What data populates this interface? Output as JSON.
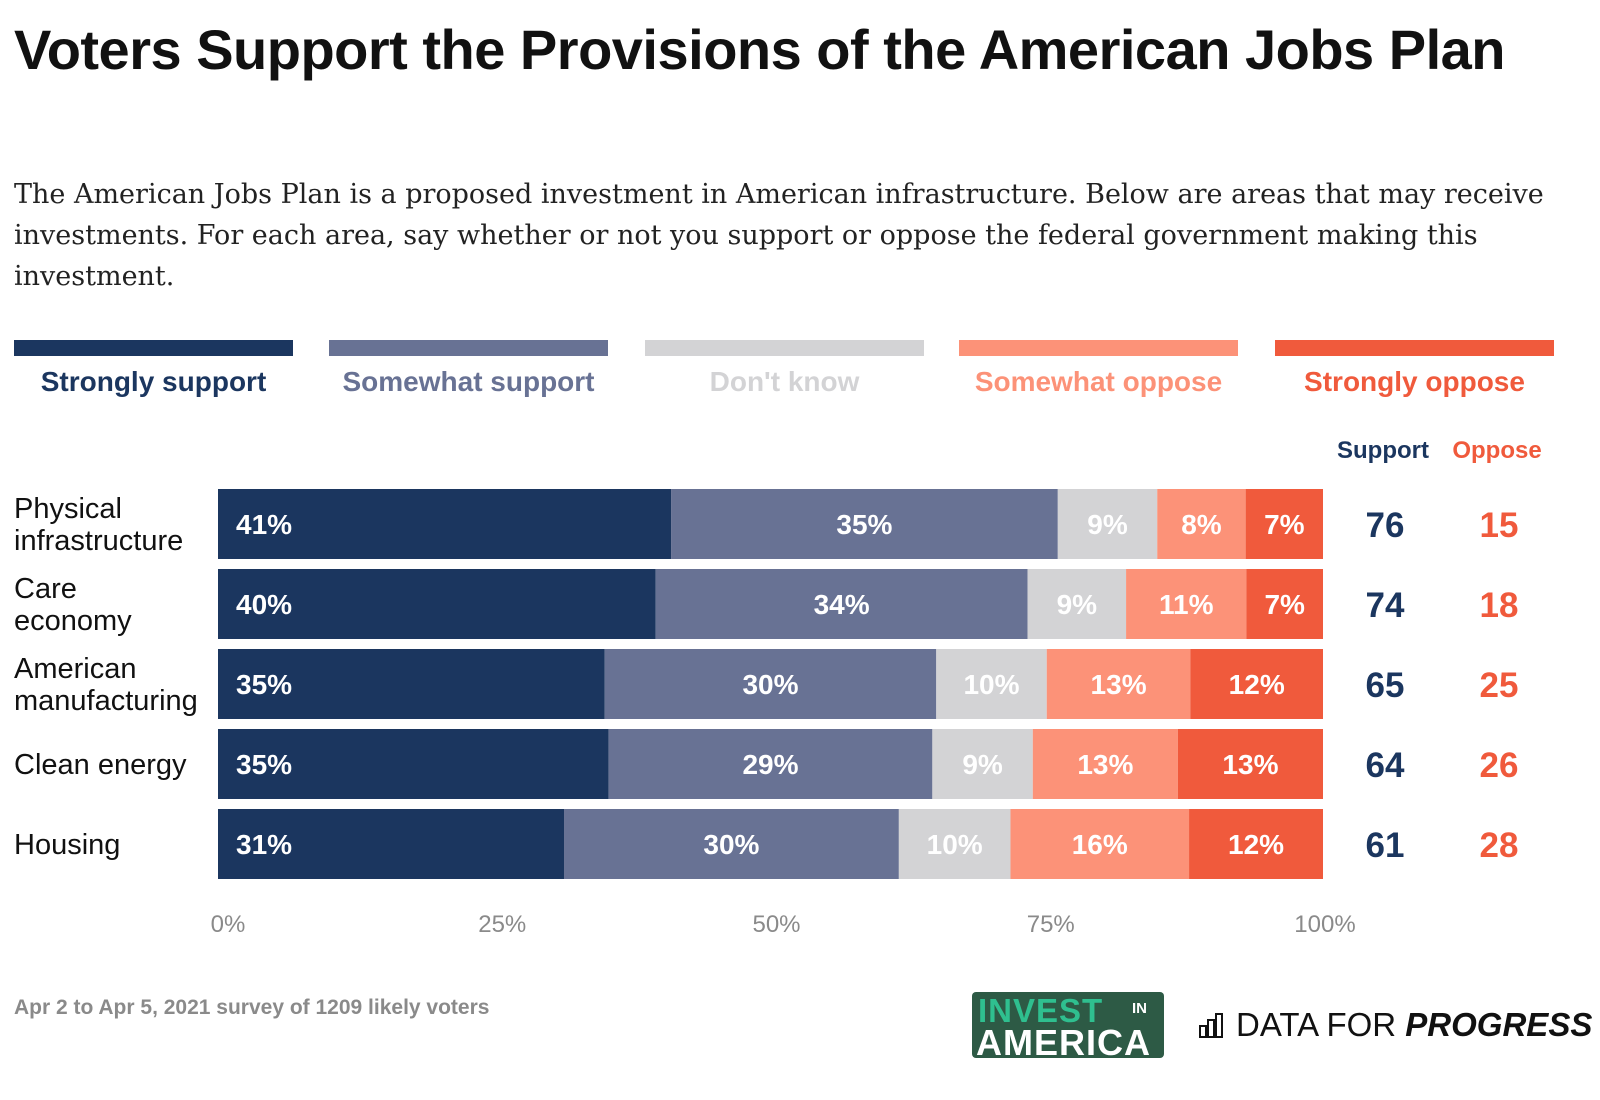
{
  "chart_data": {
    "type": "bar",
    "orientation": "horizontal-stacked-100",
    "title": "Voters Support the Provisions of the American Jobs Plan",
    "subtitle": "The American Jobs Plan is a proposed investment in American infrastructure. Below are areas that may receive investments. For each area, say whether or not you support or oppose the federal government making this investment.",
    "categories": [
      "Physical infrastructure",
      "Care economy",
      "American manufacturing",
      "Clean energy",
      "Housing"
    ],
    "series": [
      {
        "name": "Strongly support",
        "color": "#1b365f",
        "label_color": "#ffffff",
        "values": [
          41,
          40,
          35,
          35,
          31
        ]
      },
      {
        "name": "Somewhat support",
        "color": "#687294",
        "label_color": "#ffffff",
        "values": [
          35,
          34,
          30,
          29,
          30
        ]
      },
      {
        "name": "Don't know",
        "color": "#d3d3d5",
        "label_color": "#ffffff",
        "values": [
          9,
          9,
          10,
          9,
          10
        ]
      },
      {
        "name": "Somewhat oppose",
        "color": "#fc9278",
        "label_color": "#ffffff",
        "values": [
          8,
          11,
          13,
          13,
          16
        ]
      },
      {
        "name": "Strongly oppose",
        "color": "#f05a3c",
        "label_color": "#ffffff",
        "values": [
          7,
          7,
          12,
          13,
          12
        ]
      }
    ],
    "legend_text_colors": [
      "#1b365f",
      "#687294",
      "#d3d3d5",
      "#fc9278",
      "#f05a3c"
    ],
    "legend_placement": "top",
    "summary_columns": [
      {
        "name": "Support",
        "color": "#1b365f",
        "values": [
          76,
          74,
          65,
          64,
          61
        ]
      },
      {
        "name": "Oppose",
        "color": "#f05a3c",
        "values": [
          15,
          18,
          25,
          26,
          28
        ]
      }
    ],
    "xlim": [
      0,
      100
    ],
    "xticks": [
      "0%",
      "25%",
      "50%",
      "75%",
      "100%"
    ],
    "grid": false
  },
  "footer": {
    "note": "Apr 2 to Apr 5, 2021 survey of 1209 likely voters",
    "logo_invest_in_america": [
      "INVEST",
      "IN",
      "AMERICA"
    ],
    "logo_data_for_progress": [
      "DATA FOR",
      "PROGRESS"
    ]
  }
}
